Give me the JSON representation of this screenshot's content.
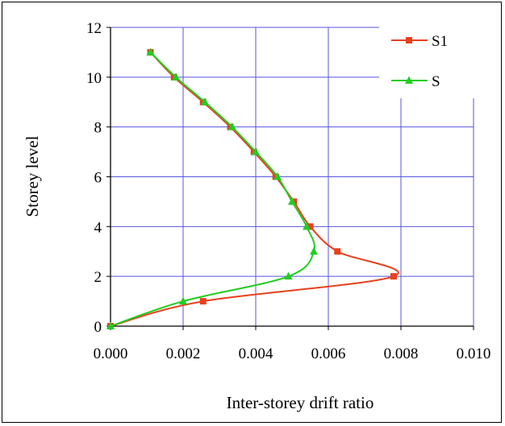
{
  "chart_data": {
    "type": "line",
    "title": "",
    "xlabel": "Inter-storey drift ratio",
    "ylabel": "Storey level",
    "xlim": [
      0,
      0.01
    ],
    "ylim": [
      0,
      12
    ],
    "x_ticks": [
      "0.000",
      "0.002",
      "0.004",
      "0.006",
      "0.008",
      "0.010"
    ],
    "y_ticks": [
      "0",
      "2",
      "4",
      "6",
      "8",
      "10",
      "12"
    ],
    "grid": true,
    "legend_position": "top-right",
    "series": [
      {
        "name": "S1",
        "color": "#e8401c",
        "marker": "square",
        "x": [
          0.0,
          0.00255,
          0.0078,
          0.00625,
          0.0055,
          0.00505,
          0.00455,
          0.00395,
          0.0033,
          0.00255,
          0.00175,
          0.0011
        ],
        "y": [
          0,
          1,
          2,
          3,
          4,
          5,
          6,
          7,
          8,
          9,
          10,
          11
        ]
      },
      {
        "name": "S",
        "color": "#22cc22",
        "marker": "triangle",
        "x": [
          0.0,
          0.002,
          0.0049,
          0.0056,
          0.0054,
          0.005,
          0.0046,
          0.004,
          0.00335,
          0.0026,
          0.0018,
          0.0011
        ],
        "y": [
          0,
          1,
          2,
          3,
          4,
          5,
          6,
          7,
          8,
          9,
          10,
          11
        ]
      }
    ]
  }
}
